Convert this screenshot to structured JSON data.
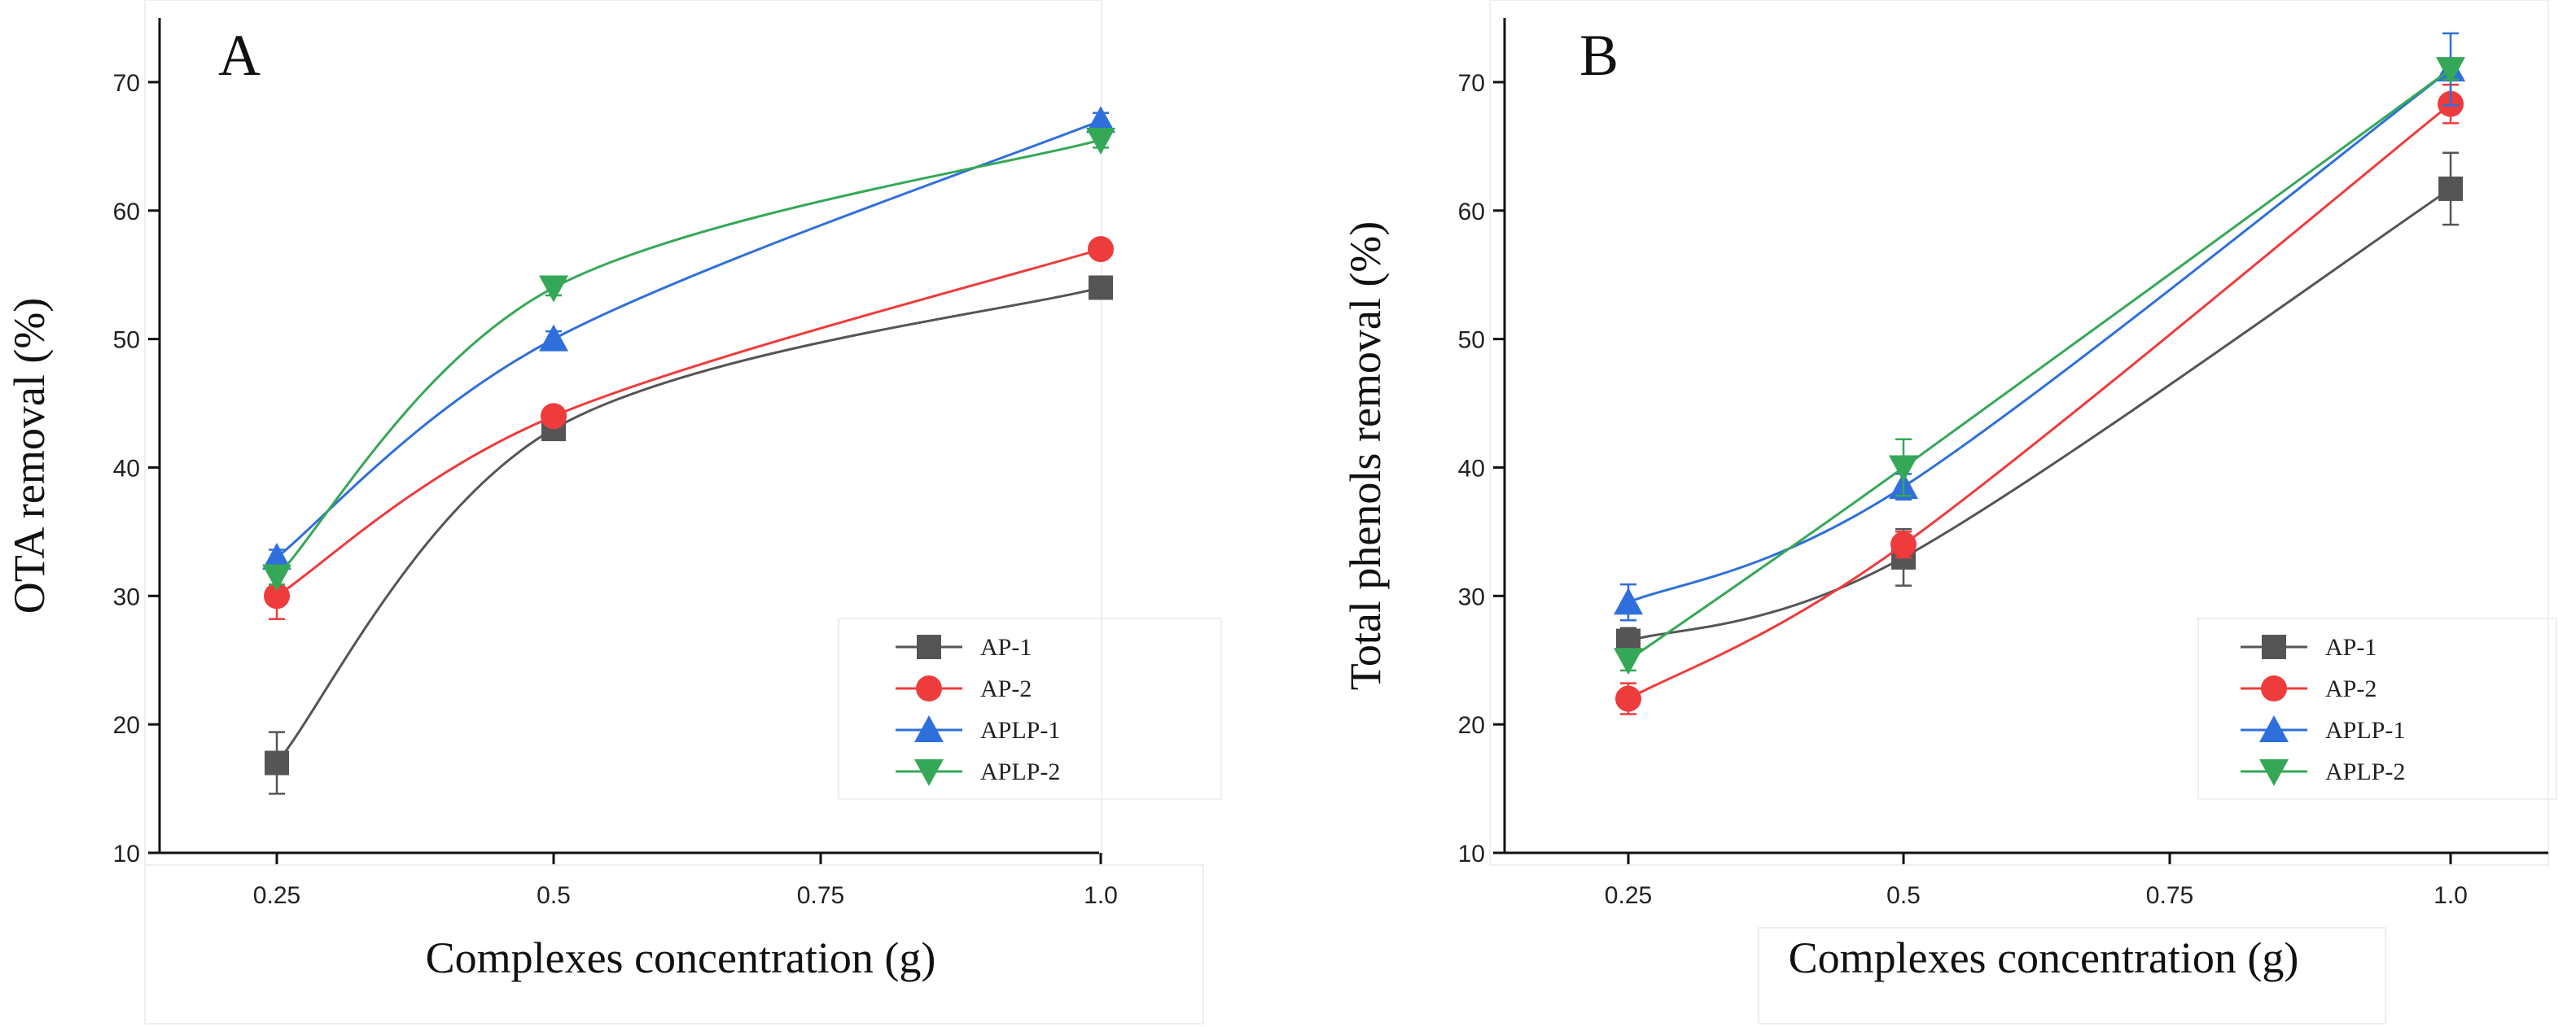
{
  "chart_data": [
    {
      "type": "line",
      "panel_label": "A",
      "xlabel": "Complexes concentration (g)",
      "ylabel": "OTA removal (%)",
      "ylim": [
        10,
        75
      ],
      "yticks": [
        10,
        20,
        30,
        40,
        50,
        60,
        70
      ],
      "categories": [
        "0.25",
        "0.5",
        "0.75",
        "1.0"
      ],
      "grid": false,
      "legend_position": "lower-right",
      "series": [
        {
          "name": "AP-1",
          "marker": "square",
          "color": "#555555",
          "x": [
            0.25,
            0.5,
            1.0
          ],
          "values": [
            17,
            43,
            54
          ],
          "errors": [
            2.4,
            0.6,
            0.6
          ]
        },
        {
          "name": "AP-2",
          "marker": "circle",
          "color": "#ee3b3b",
          "x": [
            0.25,
            0.5,
            1.0
          ],
          "values": [
            30,
            44,
            57
          ],
          "errors": [
            1.8,
            0.6,
            0.5
          ]
        },
        {
          "name": "APLP-1",
          "marker": "triangle-up",
          "color": "#2f6fdb",
          "x": [
            0.25,
            0.5,
            1.0
          ],
          "values": [
            33,
            50,
            67
          ],
          "errors": [
            0.6,
            0.6,
            0.6
          ]
        },
        {
          "name": "APLP-2",
          "marker": "triangle-down",
          "color": "#35a857",
          "x": [
            0.25,
            0.5,
            1.0
          ],
          "values": [
            31.5,
            54,
            65.5
          ],
          "errors": [
            0.6,
            0.6,
            0.6
          ]
        }
      ]
    },
    {
      "type": "line",
      "panel_label": "B",
      "xlabel": "Complexes concentration (g)",
      "ylabel": "Total phenols removal (%)",
      "ylim": [
        10,
        75
      ],
      "yticks": [
        10,
        20,
        30,
        40,
        50,
        60,
        70
      ],
      "categories": [
        "0.25",
        "0.5",
        "0.75",
        "1.0"
      ],
      "grid": false,
      "legend_position": "lower-right",
      "series": [
        {
          "name": "AP-1",
          "marker": "square",
          "color": "#555555",
          "x": [
            0.25,
            0.5,
            1.0
          ],
          "values": [
            26.5,
            33,
            61.7
          ],
          "errors": [
            1.0,
            2.2,
            2.8
          ]
        },
        {
          "name": "AP-2",
          "marker": "circle",
          "color": "#ee3b3b",
          "x": [
            0.25,
            0.5,
            1.0
          ],
          "values": [
            22,
            34,
            68.3
          ],
          "errors": [
            1.2,
            1.0,
            1.5
          ]
        },
        {
          "name": "APLP-1",
          "marker": "triangle-up",
          "color": "#2f6fdb",
          "x": [
            0.25,
            0.5,
            1.0
          ],
          "values": [
            29.5,
            38.5,
            71
          ],
          "errors": [
            1.4,
            1.0,
            2.8
          ]
        },
        {
          "name": "APLP-2",
          "marker": "triangle-down",
          "color": "#35a857",
          "x": [
            0.25,
            0.5,
            1.0
          ],
          "values": [
            25,
            40,
            71
          ],
          "errors": [
            0.8,
            2.2,
            0.8
          ]
        }
      ]
    }
  ]
}
